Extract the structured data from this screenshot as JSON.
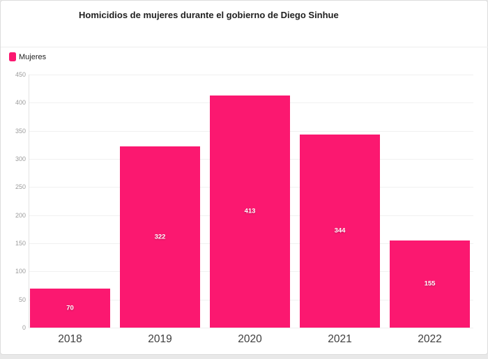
{
  "card": {
    "title": "Homicidios de mujeres durante el gobierno de Diego Sinhue"
  },
  "legend": {
    "items": [
      {
        "label": "Mujeres",
        "color": "#FB1870"
      }
    ]
  },
  "colors": {
    "bar": "#FB1870",
    "title_text": "#212121",
    "y_tick_text": "#9b9b9b",
    "x_tick_text": "#3d3d3d",
    "value_label_text": "#ffffff",
    "grid": "#f0f0f0"
  },
  "chart_data": {
    "type": "bar",
    "title": "Homicidios de mujeres durante el gobierno de Diego Sinhue",
    "categories": [
      "2018",
      "2019",
      "2020",
      "2021",
      "2022"
    ],
    "series": [
      {
        "name": "Mujeres",
        "color": "#FB1870",
        "values": [
          70,
          322,
          413,
          344,
          155
        ]
      }
    ],
    "bar_value_labels": [
      "70",
      "322",
      "413",
      "344",
      "155"
    ],
    "xlabel": "",
    "ylabel": "",
    "ylim": [
      0,
      450
    ],
    "ytick_step": 50,
    "yticks": [
      0,
      50,
      100,
      150,
      200,
      250,
      300,
      350,
      400,
      450
    ],
    "grid": "horizontal",
    "legend_position": "top-left"
  }
}
